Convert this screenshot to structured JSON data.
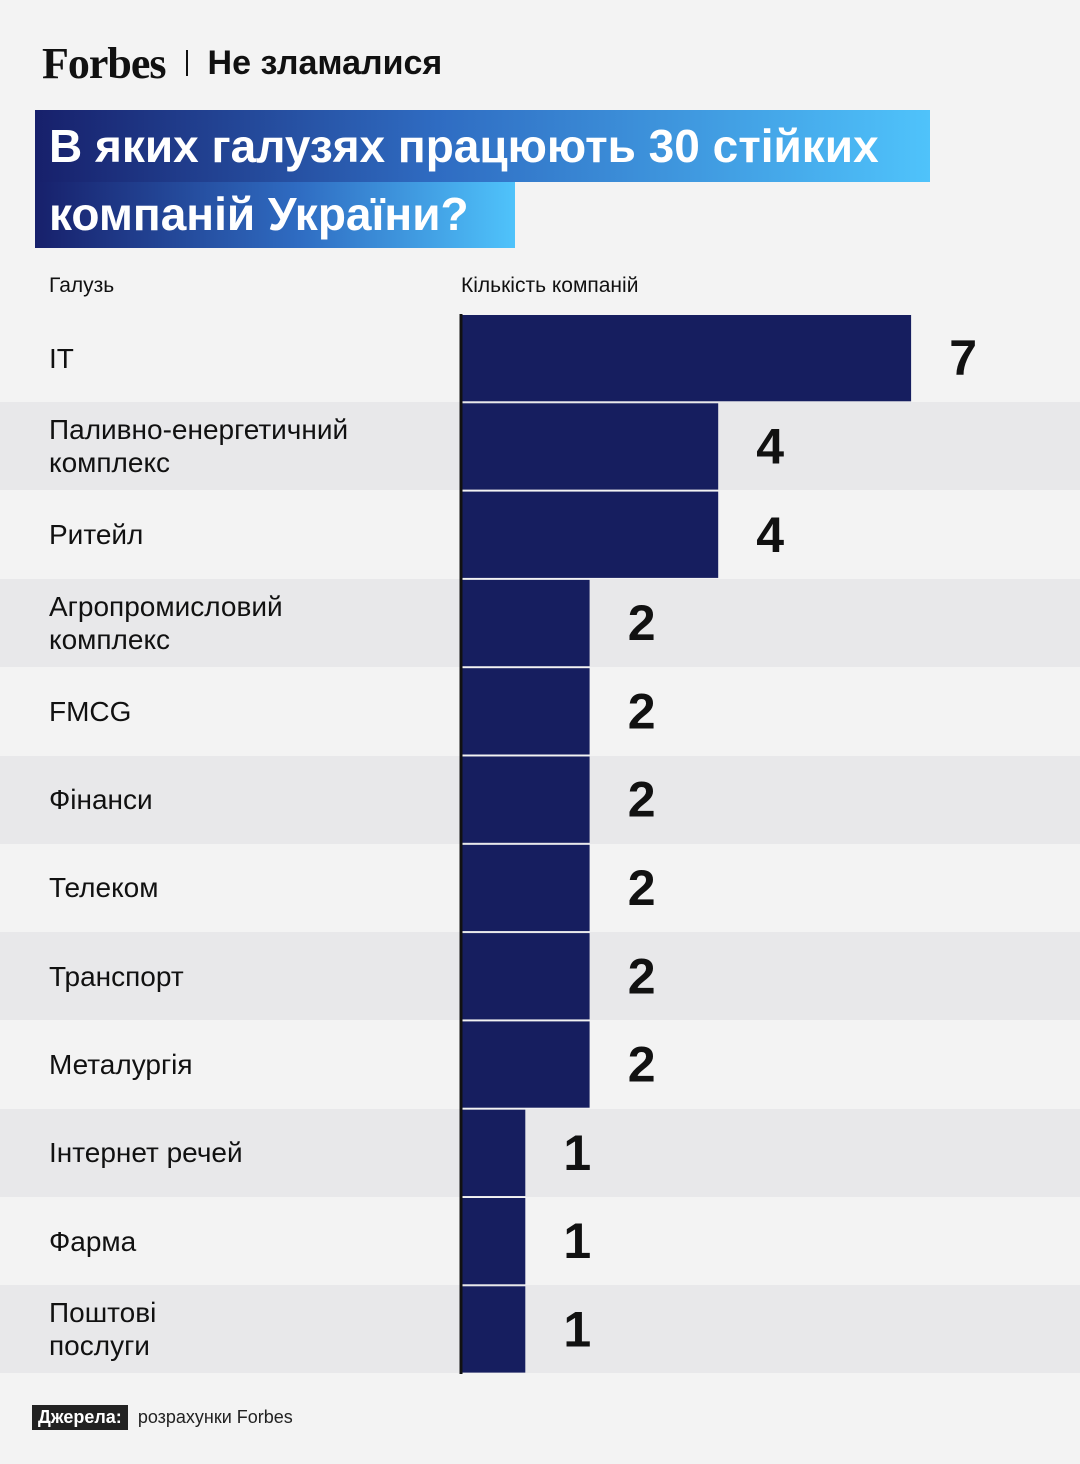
{
  "header": {
    "logo": "Forbes",
    "project": "Не зламалися"
  },
  "title_line1": "В яких галузях працюють 30 стійких",
  "title_line2": "компаній України?",
  "source_label": "Джерела:",
  "source_text": "розрахунки Forbes",
  "colors": {
    "bar": "#161e5f",
    "axis": "#111111",
    "row_alt": "#e8e8ea",
    "background": "#f3f3f3"
  },
  "chart_data": {
    "type": "bar",
    "orientation": "horizontal",
    "xlabel": "Кількість компаній",
    "ylabel": "Галузь",
    "xlim": [
      0,
      7
    ],
    "grid": false,
    "categories": [
      "IT",
      "Паливно-енергетичний комплекс",
      "Ритейл",
      "Агропромисловий комплекс",
      "FMCG",
      "Фінанси",
      "Телеком",
      "Транспорт",
      "Металургія",
      "Інтернет речей",
      "Фарма",
      "Поштові послуги"
    ],
    "category_lines": [
      [
        "IT"
      ],
      [
        "Паливно-енергетичний",
        "комплекс"
      ],
      [
        "Ритейл"
      ],
      [
        "Агропромисловий",
        "комплекс"
      ],
      [
        "FMCG"
      ],
      [
        "Фінанси"
      ],
      [
        "Телеком"
      ],
      [
        "Транспорт"
      ],
      [
        "Металургія"
      ],
      [
        "Інтернет речей"
      ],
      [
        "Фарма"
      ],
      [
        "Поштові",
        "послуги"
      ]
    ],
    "values": [
      7,
      4,
      4,
      2,
      2,
      2,
      2,
      2,
      2,
      1,
      1,
      1
    ]
  }
}
